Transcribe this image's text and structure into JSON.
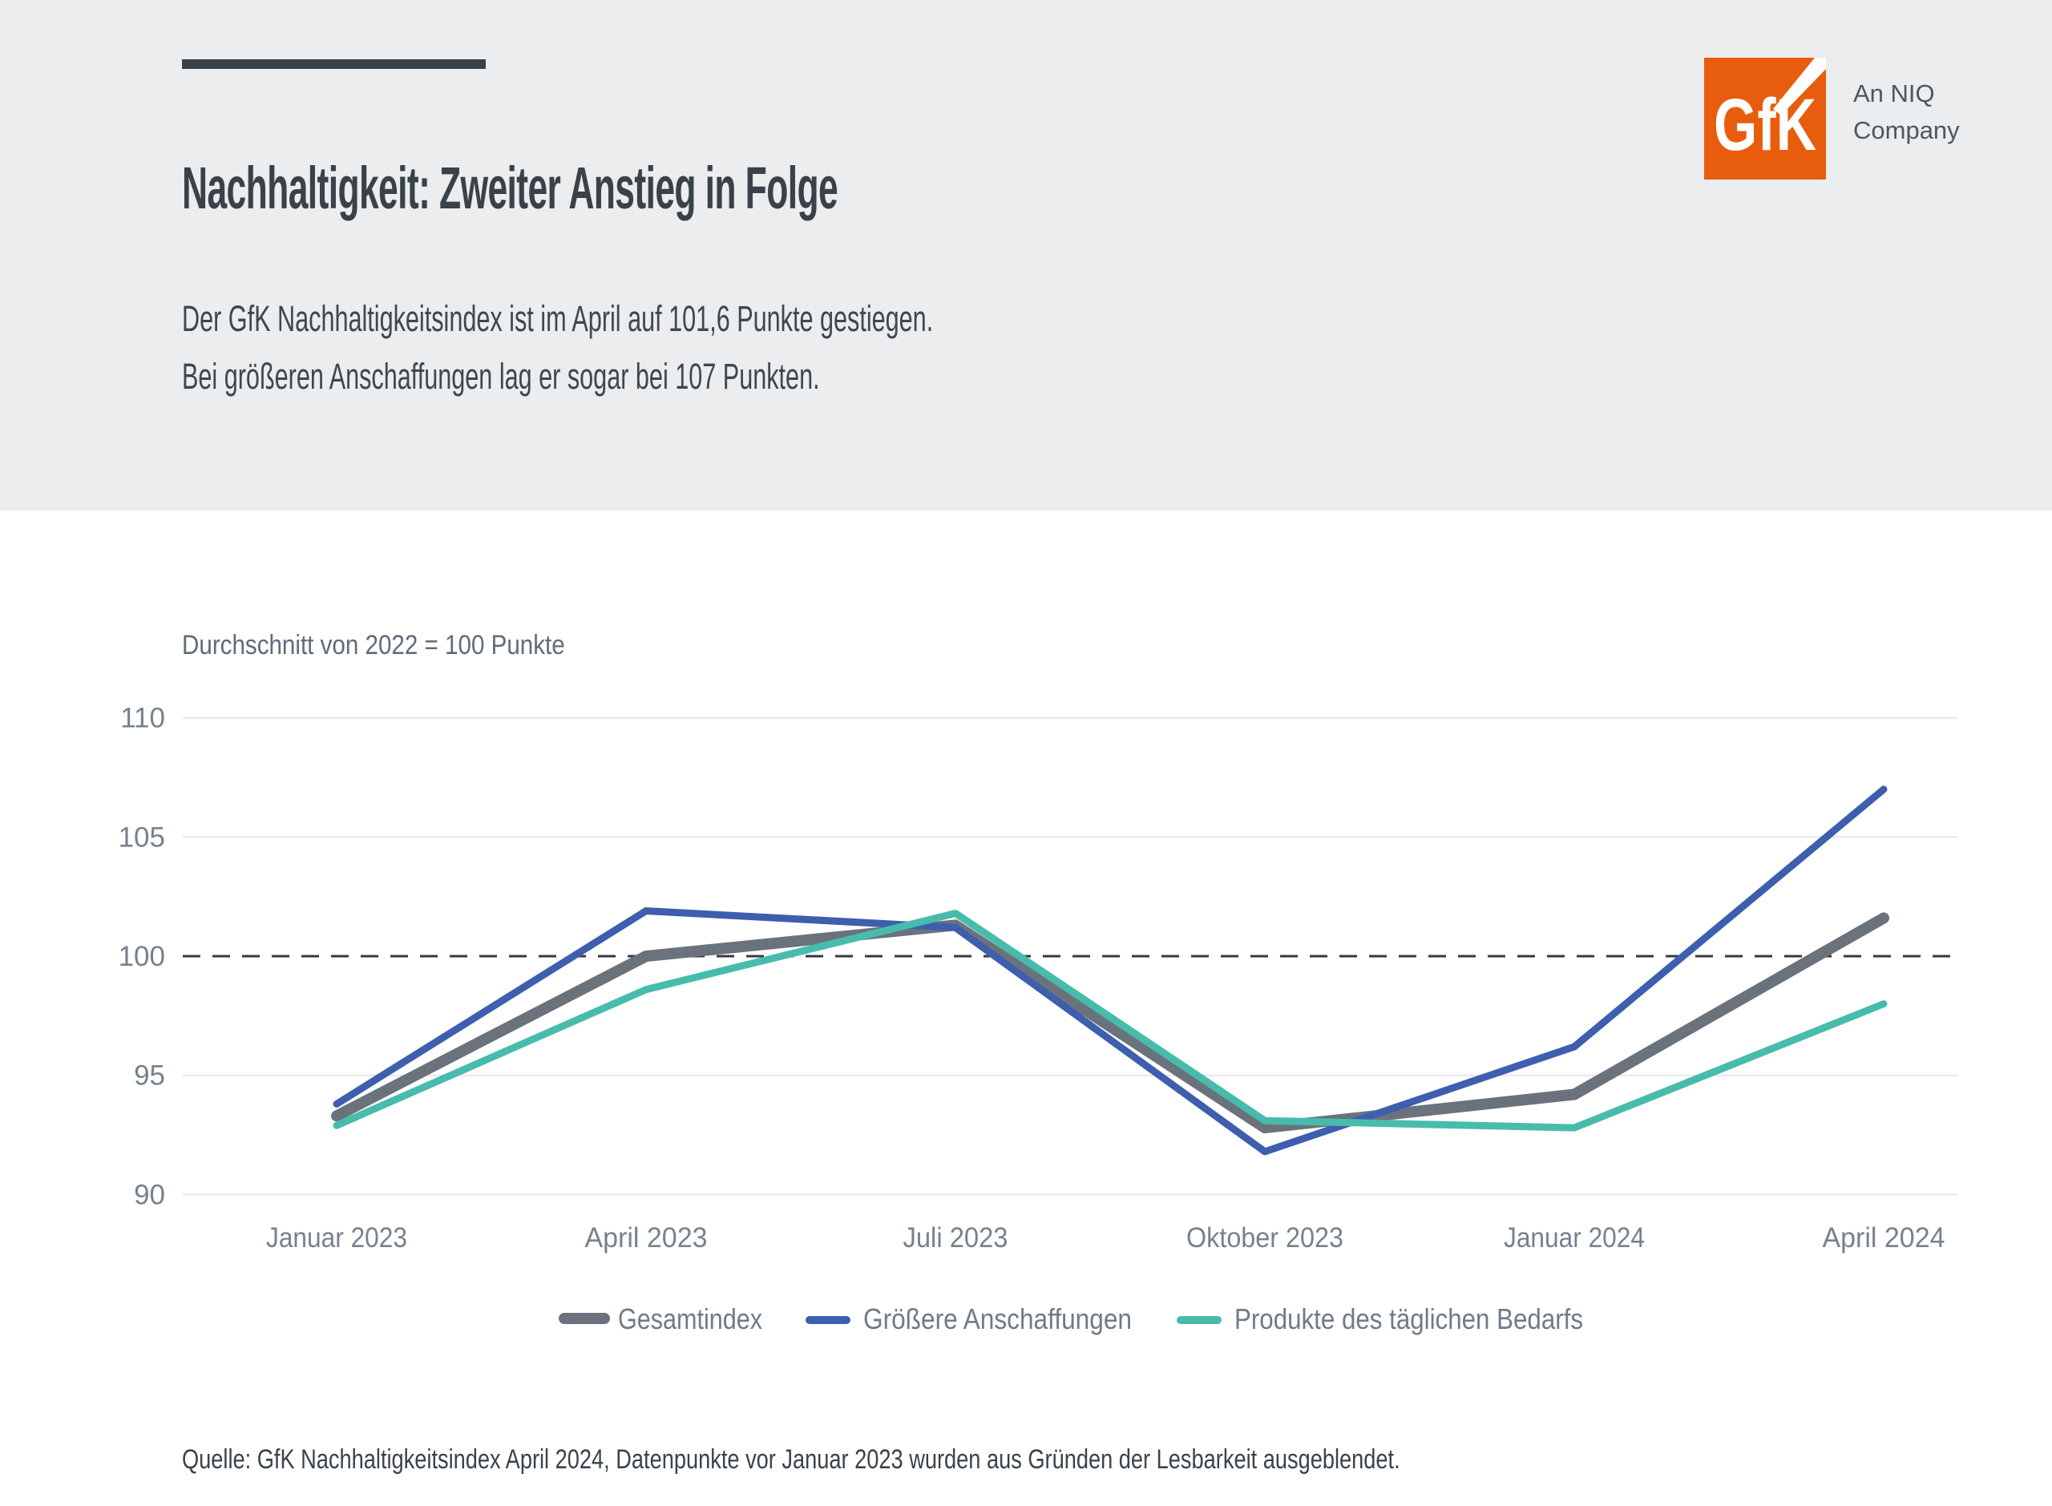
{
  "header": {
    "title": "Nachhaltigkeit: Zweiter Anstieg in Folge",
    "subtitle_line1": "Der GfK Nachhaltigkeitsindex ist im April auf 101,6 Punkte gestiegen.",
    "subtitle_line2": "Bei größeren Anschaffungen lag er sogar bei 107 Punkten.",
    "logo": {
      "text": "GfK",
      "tagline_line1": "An NIQ",
      "tagline_line2": "Company",
      "brand_color": "#E85D0D"
    }
  },
  "chart_data": {
    "type": "line",
    "title": "Durchschnitt von 2022 = 100 Punkte",
    "categories": [
      "Januar 2023",
      "April 2023",
      "Juli 2023",
      "Oktober 2023",
      "Januar 2024",
      "April 2024"
    ],
    "series": [
      {
        "name": "Gesamtindex",
        "color": "#6A737B",
        "stroke_width": 14,
        "values": [
          93.3,
          100.0,
          101.3,
          92.8,
          94.2,
          101.6
        ]
      },
      {
        "name": "Größere Anschaffungen",
        "color": "#3E5EAE",
        "stroke_width": 9,
        "values": [
          93.8,
          101.9,
          101.2,
          91.8,
          96.2,
          107.0
        ]
      },
      {
        "name": "Produkte des täglichen Bedarfs",
        "color": "#48BCAC",
        "stroke_width": 9,
        "values": [
          92.9,
          98.6,
          101.8,
          93.1,
          92.8,
          98.0
        ]
      }
    ],
    "ylim": [
      90,
      110
    ],
    "yticks": [
      90,
      95,
      100,
      105,
      110
    ],
    "baseline": 100,
    "grid": "horizontal",
    "legend_position": "bottom",
    "colors": {
      "gridline": "#E5E7E9",
      "baseline_dash": "#34393E",
      "tick_label": "#76828D",
      "legend_label": "#6F7B87"
    }
  },
  "footer": {
    "source": "Quelle: GfK Nachhaltigkeitsindex April 2024, Datenpunkte vor Januar 2023 wurden aus Gründen der Lesbarkeit ausgeblendet."
  }
}
